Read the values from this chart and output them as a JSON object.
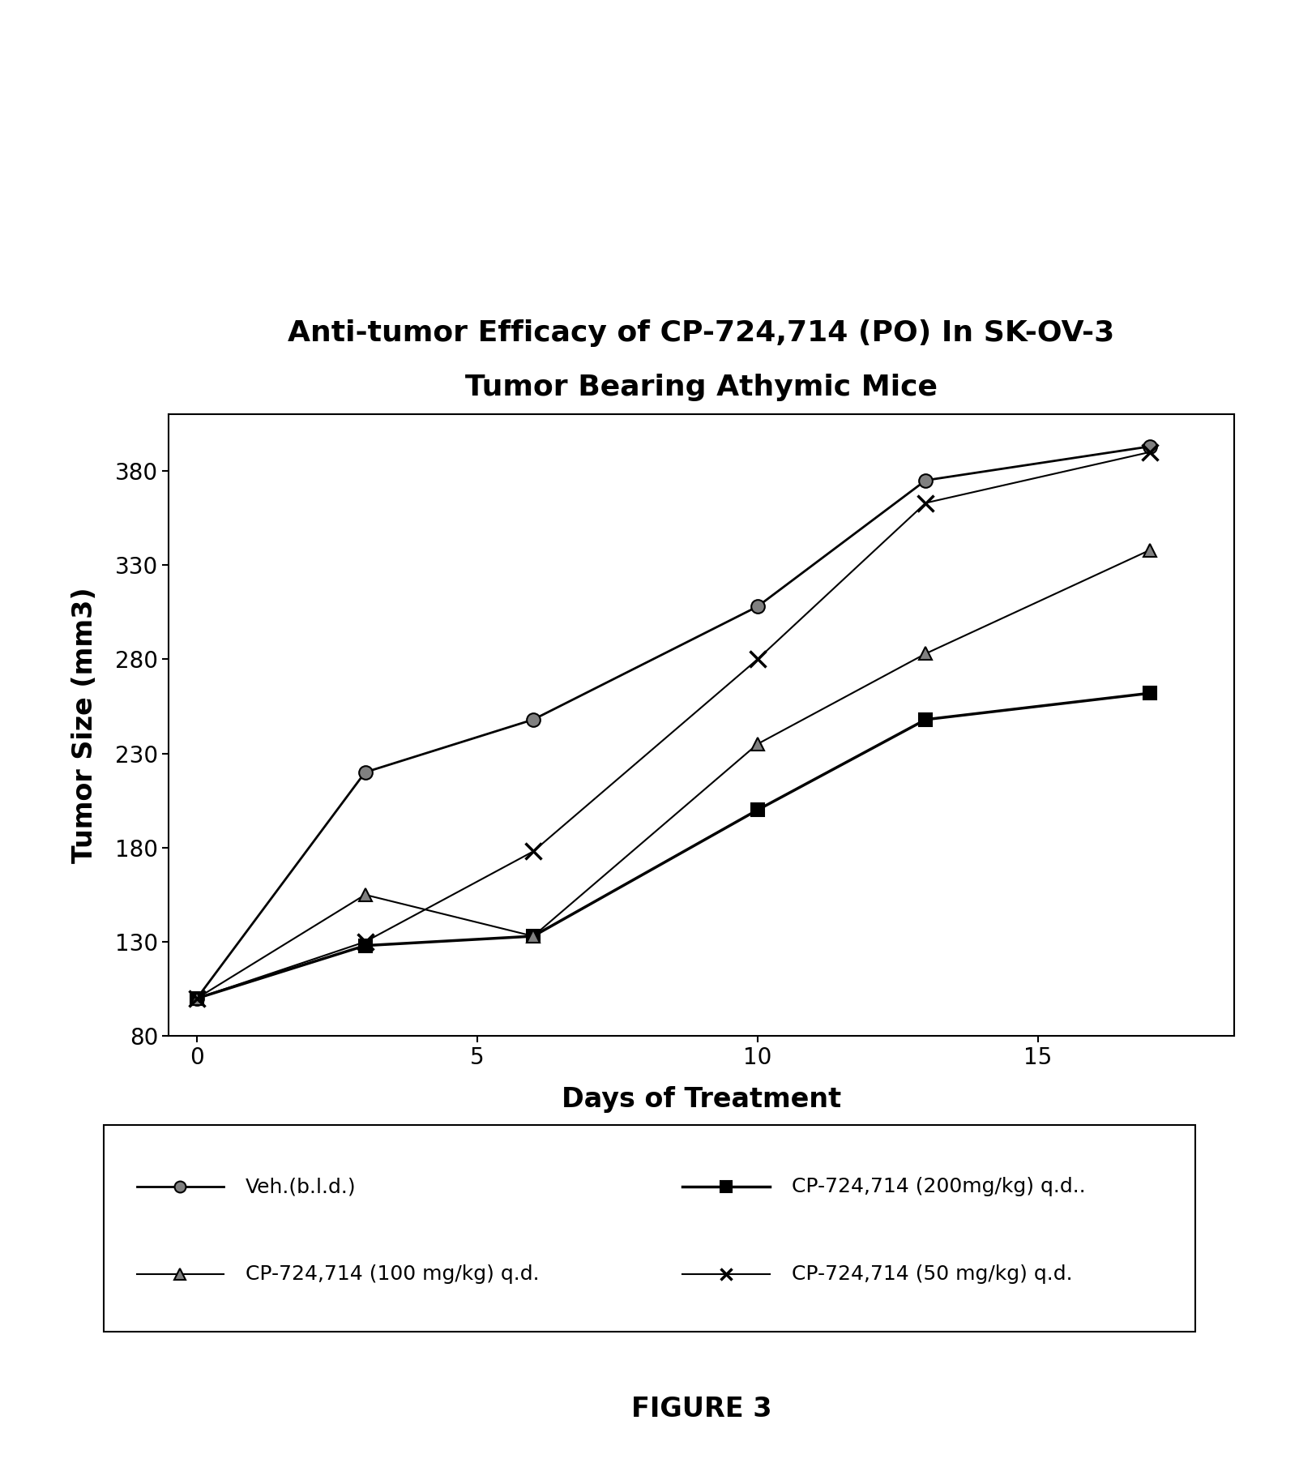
{
  "title_line1": "Anti-tumor Efficacy of CP-724,714 (PO) In SK-OV-3",
  "title_line2": "Tumor Bearing Athymic Mice",
  "xlabel": "Days of Treatment",
  "ylabel": "Tumor Size (mm3)",
  "xlim": [
    -0.5,
    18.5
  ],
  "ylim": [
    80,
    410
  ],
  "yticks": [
    80,
    130,
    180,
    230,
    280,
    330,
    380
  ],
  "xticks": [
    0,
    5,
    10,
    15
  ],
  "figure_caption": "FIGURE 3",
  "series": [
    {
      "label": "Veh.(b.l.d.)",
      "x": [
        0,
        3,
        6,
        10,
        13,
        17
      ],
      "y": [
        100,
        220,
        248,
        308,
        375,
        393
      ],
      "marker": "o",
      "markerfacecolor": "gray",
      "markeredgecolor": "black",
      "markeredgewidth": 1.5,
      "color": "black",
      "linewidth": 2.0,
      "markersize": 12,
      "linestyle": "-"
    },
    {
      "label": "CP-724,714 (200mg/kg) q.d..",
      "x": [
        0,
        3,
        6,
        10,
        13,
        17
      ],
      "y": [
        100,
        128,
        133,
        200,
        248,
        262
      ],
      "marker": "s",
      "markerfacecolor": "black",
      "markeredgecolor": "black",
      "markeredgewidth": 1.5,
      "color": "black",
      "linewidth": 2.5,
      "markersize": 12,
      "linestyle": "-"
    },
    {
      "label": "CP-724,714 (100 mg/kg) q.d.",
      "x": [
        0,
        3,
        6,
        10,
        13,
        17
      ],
      "y": [
        100,
        155,
        133,
        235,
        283,
        338
      ],
      "marker": "^",
      "markerfacecolor": "gray",
      "markeredgecolor": "black",
      "markeredgewidth": 1.5,
      "color": "black",
      "linewidth": 1.5,
      "markersize": 12,
      "linestyle": "-"
    },
    {
      "label": "CP-724,714 (50 mg/kg) q.d.",
      "x": [
        0,
        3,
        6,
        10,
        13,
        17
      ],
      "y": [
        100,
        130,
        178,
        280,
        363,
        390
      ],
      "marker": "x",
      "markerfacecolor": "none",
      "markeredgecolor": "black",
      "markeredgewidth": 2.5,
      "color": "black",
      "linewidth": 1.5,
      "markersize": 14,
      "linestyle": "-"
    }
  ],
  "legend_entries": [
    {
      "marker": "o",
      "mfc": "gray",
      "mec": "black",
      "mew": 1.5,
      "label": "Veh.(b.l.d.)",
      "lw": 2.0,
      "col": 0,
      "row": 0
    },
    {
      "marker": "s",
      "mfc": "black",
      "mec": "black",
      "mew": 1.5,
      "label": "CP-724,714 (200mg/kg) q.d..",
      "lw": 2.5,
      "col": 1,
      "row": 0
    },
    {
      "marker": "^",
      "mfc": "gray",
      "mec": "black",
      "mew": 1.5,
      "label": "CP-724,714 (100 mg/kg) q.d.",
      "lw": 1.5,
      "col": 0,
      "row": 1
    },
    {
      "marker": "x",
      "mfc": "none",
      "mec": "black",
      "mew": 2.5,
      "label": "CP-724,714 (50 mg/kg) q.d.",
      "lw": 1.5,
      "col": 1,
      "row": 1
    }
  ],
  "background_color": "white"
}
